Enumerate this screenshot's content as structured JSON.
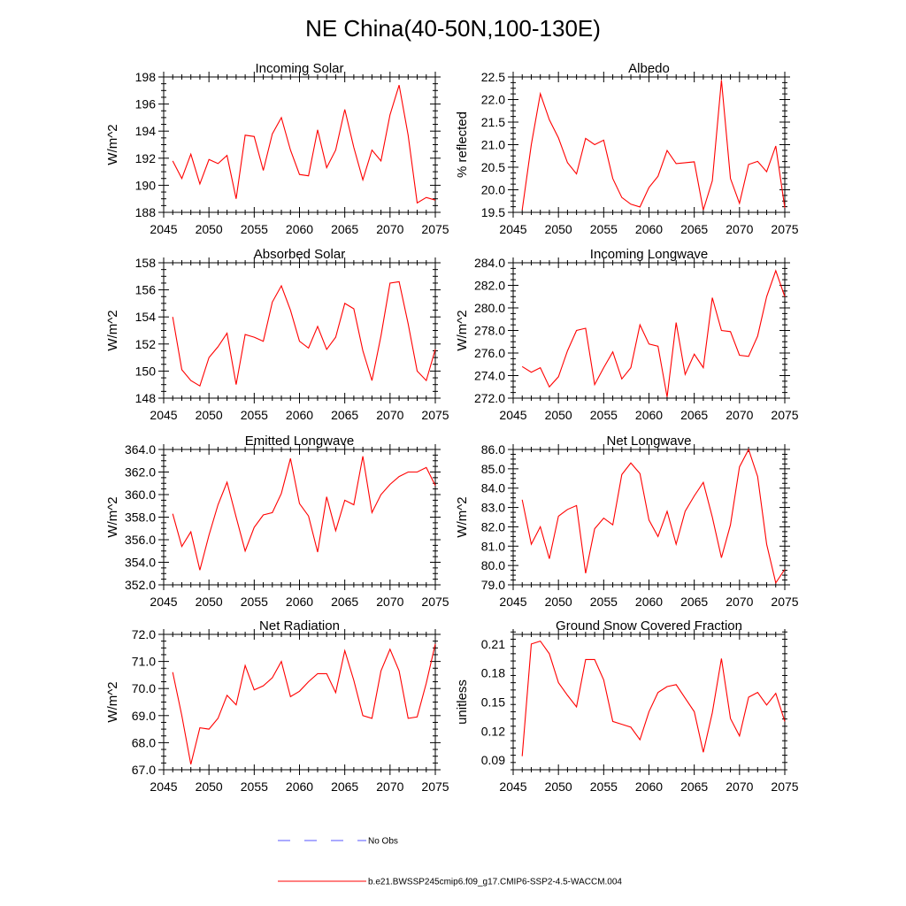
{
  "page_title": "NE China(40-50N,100-130E)",
  "legend": {
    "entries": [
      {
        "label": "No Obs",
        "color": "#5555ff",
        "style": "dashed"
      },
      {
        "label": "b.e21.BWSSP245cmip6.f09_g17.CMIP6-SSP2-4.5-WACCM.004",
        "color": "#ff0000",
        "style": "solid"
      }
    ]
  },
  "chart_data": [
    {
      "type": "line",
      "title": "Incoming Solar",
      "ylabel": "W/m^2",
      "xlim": [
        2045,
        2075
      ],
      "ylim": [
        188,
        198
      ],
      "xticks": [
        2045,
        2050,
        2055,
        2060,
        2065,
        2070,
        2075
      ],
      "yticks": [
        188,
        190,
        192,
        194,
        196,
        198
      ],
      "yticklabels": [
        "188",
        "190",
        "192",
        "194",
        "196",
        "198"
      ],
      "x": [
        2046,
        2047,
        2048,
        2049,
        2050,
        2051,
        2052,
        2053,
        2054,
        2055,
        2056,
        2057,
        2058,
        2059,
        2060,
        2061,
        2062,
        2063,
        2064,
        2065,
        2066,
        2067,
        2068,
        2069,
        2070,
        2071,
        2072,
        2073,
        2074,
        2075
      ],
      "series": [
        {
          "values": [
            191.8,
            190.5,
            192.3,
            190.1,
            191.9,
            191.6,
            192.2,
            189.0,
            193.7,
            193.6,
            191.1,
            193.8,
            195.0,
            192.6,
            190.8,
            190.7,
            194.1,
            191.3,
            192.6,
            195.6,
            192.8,
            190.4,
            192.6,
            191.8,
            195.2,
            197.4,
            193.7,
            188.7,
            189.1,
            188.9
          ],
          "color": "#ff0000"
        }
      ]
    },
    {
      "type": "line",
      "title": "Albedo",
      "ylabel": "% reflected",
      "xlim": [
        2045,
        2075
      ],
      "ylim": [
        19.5,
        22.5
      ],
      "xticks": [
        2045,
        2050,
        2055,
        2060,
        2065,
        2070,
        2075
      ],
      "yticks": [
        19.5,
        20.0,
        20.5,
        21.0,
        21.5,
        22.0,
        22.5
      ],
      "yticklabels": [
        "19.5",
        "20.0",
        "20.5",
        "21.0",
        "21.5",
        "22.0",
        "22.5"
      ],
      "x": [
        2046,
        2047,
        2048,
        2049,
        2050,
        2051,
        2052,
        2053,
        2054,
        2055,
        2056,
        2057,
        2058,
        2059,
        2060,
        2061,
        2062,
        2063,
        2064,
        2065,
        2066,
        2067,
        2068,
        2069,
        2070,
        2071,
        2072,
        2073,
        2074,
        2075
      ],
      "series": [
        {
          "values": [
            19.55,
            21.0,
            22.13,
            21.55,
            21.15,
            20.6,
            20.35,
            21.14,
            21.0,
            21.1,
            20.25,
            19.83,
            19.68,
            19.62,
            20.05,
            20.3,
            20.87,
            20.58,
            20.6,
            20.62,
            19.55,
            20.2,
            22.43,
            20.25,
            19.7,
            20.56,
            20.63,
            20.4,
            20.97,
            19.6
          ],
          "color": "#ff0000"
        }
      ]
    },
    {
      "type": "line",
      "title": "Absorbed Solar",
      "ylabel": "W/m^2",
      "xlim": [
        2045,
        2075
      ],
      "ylim": [
        148,
        158
      ],
      "xticks": [
        2045,
        2050,
        2055,
        2060,
        2065,
        2070,
        2075
      ],
      "yticks": [
        148,
        150,
        152,
        154,
        156,
        158
      ],
      "yticklabels": [
        "148",
        "150",
        "152",
        "154",
        "156",
        "158"
      ],
      "x": [
        2046,
        2047,
        2048,
        2049,
        2050,
        2051,
        2052,
        2053,
        2054,
        2055,
        2056,
        2057,
        2058,
        2059,
        2060,
        2061,
        2062,
        2063,
        2064,
        2065,
        2066,
        2067,
        2068,
        2069,
        2070,
        2071,
        2072,
        2073,
        2074,
        2075
      ],
      "series": [
        {
          "values": [
            154.0,
            150.1,
            149.3,
            148.9,
            151.0,
            151.8,
            152.8,
            149.0,
            152.7,
            152.5,
            152.2,
            155.1,
            156.3,
            154.5,
            152.2,
            151.7,
            153.3,
            151.6,
            152.5,
            155.0,
            154.6,
            151.5,
            149.3,
            152.6,
            156.5,
            156.6,
            153.5,
            150.0,
            149.3,
            151.6
          ],
          "color": "#ff0000"
        }
      ]
    },
    {
      "type": "line",
      "title": "Incoming Longwave",
      "ylabel": "W/m^2",
      "xlim": [
        2045,
        2075
      ],
      "ylim": [
        272,
        284
      ],
      "xticks": [
        2045,
        2050,
        2055,
        2060,
        2065,
        2070,
        2075
      ],
      "yticks": [
        272,
        274,
        276,
        278,
        280,
        282,
        284
      ],
      "yticklabels": [
        "272.0",
        "274.0",
        "276.0",
        "278.0",
        "280.0",
        "282.0",
        "284.0"
      ],
      "x": [
        2046,
        2047,
        2048,
        2049,
        2050,
        2051,
        2052,
        2053,
        2054,
        2055,
        2056,
        2057,
        2058,
        2059,
        2060,
        2061,
        2062,
        2063,
        2064,
        2065,
        2066,
        2067,
        2068,
        2069,
        2070,
        2071,
        2072,
        2073,
        2074,
        2075
      ],
      "series": [
        {
          "values": [
            274.8,
            274.3,
            274.7,
            273.0,
            273.9,
            276.2,
            278.0,
            278.2,
            273.2,
            274.7,
            276.1,
            273.7,
            274.7,
            278.5,
            276.8,
            276.6,
            272.1,
            278.7,
            274.1,
            275.9,
            274.7,
            280.9,
            278.0,
            277.9,
            275.8,
            275.7,
            277.5,
            281.0,
            283.3,
            281.0
          ],
          "color": "#ff0000"
        }
      ]
    },
    {
      "type": "line",
      "title": "Emitted Longwave",
      "ylabel": "W/m^2",
      "xlim": [
        2045,
        2075
      ],
      "ylim": [
        352,
        364
      ],
      "xticks": [
        2045,
        2050,
        2055,
        2060,
        2065,
        2070,
        2075
      ],
      "yticks": [
        352,
        354,
        356,
        358,
        360,
        362,
        364
      ],
      "yticklabels": [
        "352.0",
        "354.0",
        "356.0",
        "358.0",
        "360.0",
        "362.0",
        "364.0"
      ],
      "x": [
        2046,
        2047,
        2048,
        2049,
        2050,
        2051,
        2052,
        2053,
        2054,
        2055,
        2056,
        2057,
        2058,
        2059,
        2060,
        2061,
        2062,
        2063,
        2064,
        2065,
        2066,
        2067,
        2068,
        2069,
        2070,
        2071,
        2072,
        2073,
        2074,
        2075
      ],
      "series": [
        {
          "values": [
            358.3,
            355.4,
            356.7,
            353.3,
            356.4,
            359.1,
            361.1,
            358.0,
            355.0,
            357.1,
            358.2,
            358.4,
            360.1,
            363.2,
            359.2,
            358.1,
            354.9,
            359.8,
            356.8,
            359.5,
            359.1,
            363.4,
            358.4,
            360.0,
            360.9,
            361.6,
            362.0,
            362.0,
            362.4,
            360.8
          ],
          "color": "#ff0000"
        }
      ]
    },
    {
      "type": "line",
      "title": "Net Longwave",
      "ylabel": "W/m^2",
      "xlim": [
        2045,
        2075
      ],
      "ylim": [
        79,
        86
      ],
      "xticks": [
        2045,
        2050,
        2055,
        2060,
        2065,
        2070,
        2075
      ],
      "yticks": [
        79,
        80,
        81,
        82,
        83,
        84,
        85,
        86
      ],
      "yticklabels": [
        "79.0",
        "80.0",
        "81.0",
        "82.0",
        "83.0",
        "84.0",
        "85.0",
        "86.0"
      ],
      "x": [
        2046,
        2047,
        2048,
        2049,
        2050,
        2051,
        2052,
        2053,
        2054,
        2055,
        2056,
        2057,
        2058,
        2059,
        2060,
        2061,
        2062,
        2063,
        2064,
        2065,
        2066,
        2067,
        2068,
        2069,
        2070,
        2071,
        2072,
        2073,
        2074,
        2075
      ],
      "series": [
        {
          "values": [
            83.4,
            81.1,
            82.0,
            80.35,
            82.55,
            82.9,
            83.1,
            79.6,
            81.9,
            82.45,
            82.1,
            84.7,
            85.3,
            84.75,
            82.35,
            81.5,
            82.8,
            81.1,
            82.8,
            83.6,
            84.3,
            82.5,
            80.4,
            82.1,
            85.1,
            86.0,
            84.6,
            81.1,
            79.1,
            79.8
          ],
          "color": "#ff0000"
        }
      ]
    },
    {
      "type": "line",
      "title": "Net Radiation",
      "ylabel": "W/m^2",
      "xlim": [
        2045,
        2075
      ],
      "ylim": [
        67,
        72
      ],
      "xticks": [
        2045,
        2050,
        2055,
        2060,
        2065,
        2070,
        2075
      ],
      "yticks": [
        67,
        68,
        69,
        70,
        71,
        72
      ],
      "yticklabels": [
        "67.0",
        "68.0",
        "69.0",
        "70.0",
        "71.0",
        "72.0"
      ],
      "x": [
        2046,
        2047,
        2048,
        2049,
        2050,
        2051,
        2052,
        2053,
        2054,
        2055,
        2056,
        2057,
        2058,
        2059,
        2060,
        2061,
        2062,
        2063,
        2064,
        2065,
        2066,
        2067,
        2068,
        2069,
        2070,
        2071,
        2072,
        2073,
        2074,
        2075
      ],
      "series": [
        {
          "values": [
            70.6,
            69.0,
            67.2,
            68.55,
            68.5,
            68.9,
            69.75,
            69.4,
            70.85,
            69.95,
            70.1,
            70.4,
            71.0,
            69.7,
            69.9,
            70.25,
            70.55,
            70.55,
            69.85,
            71.4,
            70.3,
            69.0,
            68.9,
            70.65,
            71.45,
            70.65,
            68.9,
            68.95,
            70.2,
            71.65
          ],
          "color": "#ff0000"
        }
      ]
    },
    {
      "type": "line",
      "title": "Ground Snow Covered Fraction",
      "ylabel": "unitless",
      "xlim": [
        2045,
        2075
      ],
      "ylim": [
        0.08,
        0.22
      ],
      "xticks": [
        2045,
        2050,
        2055,
        2060,
        2065,
        2070,
        2075
      ],
      "yticks": [
        0.09,
        0.12,
        0.15,
        0.18,
        0.21
      ],
      "yticklabels": [
        "0.09",
        "0.12",
        "0.15",
        "0.18",
        "0.21"
      ],
      "x": [
        2046,
        2047,
        2048,
        2049,
        2050,
        2051,
        2052,
        2053,
        2054,
        2055,
        2056,
        2057,
        2058,
        2059,
        2060,
        2061,
        2062,
        2063,
        2064,
        2065,
        2066,
        2067,
        2068,
        2069,
        2070,
        2071,
        2072,
        2073,
        2074,
        2075
      ],
      "series": [
        {
          "values": [
            0.094,
            0.21,
            0.213,
            0.2,
            0.17,
            0.157,
            0.145,
            0.194,
            0.194,
            0.173,
            0.13,
            0.127,
            0.124,
            0.111,
            0.14,
            0.16,
            0.166,
            0.168,
            0.154,
            0.14,
            0.098,
            0.139,
            0.195,
            0.133,
            0.115,
            0.155,
            0.16,
            0.147,
            0.159,
            0.13
          ],
          "color": "#ff0000"
        }
      ]
    }
  ]
}
